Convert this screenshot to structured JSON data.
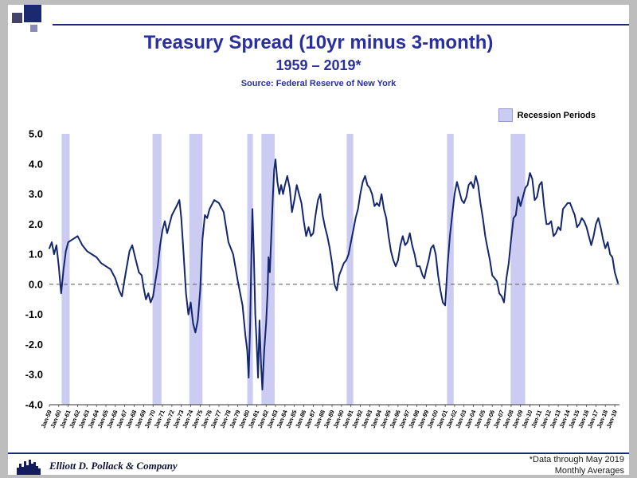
{
  "slide": {
    "title": "Treasury Spread (10yr minus 3-month)",
    "subtitle": "1959 – 2019*",
    "source": "Source: Federal Reserve of New York",
    "footer_company": "Elliott D. Pollack & Company",
    "footer_note_line1": "*Data through May 2019",
    "footer_note_line2": "Monthly Averages"
  },
  "legend": {
    "label": "Recession Periods"
  },
  "colors": {
    "title": "#2a2f9f",
    "line": "#14266e",
    "band": "#ccccf2",
    "accent_rule": "#1b2a70",
    "page_background": "#bdbdbd",
    "slide_background": "#ffffff"
  },
  "chart_data": {
    "type": "line",
    "title": "Treasury Spread (10yr minus 3-month)",
    "subtitle": "1959 – 2019*",
    "source": "Source: Federal Reserve of New York",
    "ylabel": "",
    "xlabel": "",
    "ylim": [
      -4.0,
      5.0
    ],
    "yticks": [
      "5.0",
      "4.0",
      "3.0",
      "2.0",
      "1.0",
      "0.0",
      "-1.0",
      "-2.0",
      "-3.0",
      "-4.0"
    ],
    "x_domain": [
      1959.0,
      2019.5
    ],
    "zero_line_style": "dashed",
    "legend_position": "top-right",
    "legend_entries": [
      "Recession Periods"
    ],
    "categories": [
      "Jan-59",
      "Jan-60",
      "Jan-61",
      "Jan-62",
      "Jan-63",
      "Jan-64",
      "Jan-65",
      "Jan-66",
      "Jan-67",
      "Jan-68",
      "Jan-69",
      "Jan-70",
      "Jan-71",
      "Jan-72",
      "Jan-73",
      "Jan-74",
      "Jan-75",
      "Jan-76",
      "Jan-77",
      "Jan-78",
      "Jan-79",
      "Jan-80",
      "Jan-81",
      "Jan-82",
      "Jan-83",
      "Jan-84",
      "Jan-85",
      "Jan-86",
      "Jan-87",
      "Jan-88",
      "Jan-89",
      "Jan-90",
      "Jan-91",
      "Jan-92",
      "Jan-93",
      "Jan-94",
      "Jan-95",
      "Jan-96",
      "Jan-97",
      "Jan-98",
      "Jan-99",
      "Jan-00",
      "Jan-01",
      "Jan-02",
      "Jan-03",
      "Jan-04",
      "Jan-05",
      "Jan-06",
      "Jan-07",
      "Jan-08",
      "Jan-09",
      "Jan-10",
      "Jan-11",
      "Jan-12",
      "Jan-13",
      "Jan-14",
      "Jan-15",
      "Jan-16",
      "Jan-17",
      "Jan-18",
      "Jan-19"
    ],
    "recession_bands": [
      [
        1960.3,
        1961.15
      ],
      [
        1969.95,
        1970.9
      ],
      [
        1973.85,
        1975.25
      ],
      [
        1980.0,
        1980.6
      ],
      [
        1981.5,
        1982.9
      ],
      [
        1990.55,
        1991.25
      ],
      [
        2001.2,
        2001.9
      ],
      [
        2007.95,
        2009.5
      ]
    ],
    "series": [
      {
        "name": "10yr minus 3-month Treasury spread (monthly average, %)",
        "points": [
          [
            1959.0,
            1.2
          ],
          [
            1959.25,
            1.4
          ],
          [
            1959.5,
            1.0
          ],
          [
            1959.75,
            1.3
          ],
          [
            1960.0,
            0.6
          ],
          [
            1960.25,
            -0.3
          ],
          [
            1960.5,
            0.5
          ],
          [
            1960.75,
            1.1
          ],
          [
            1961.0,
            1.4
          ],
          [
            1961.5,
            1.5
          ],
          [
            1962.0,
            1.6
          ],
          [
            1962.5,
            1.3
          ],
          [
            1963.0,
            1.1
          ],
          [
            1963.5,
            1.0
          ],
          [
            1964.0,
            0.9
          ],
          [
            1964.5,
            0.7
          ],
          [
            1965.0,
            0.6
          ],
          [
            1965.5,
            0.5
          ],
          [
            1966.0,
            0.2
          ],
          [
            1966.4,
            -0.2
          ],
          [
            1966.7,
            -0.4
          ],
          [
            1967.0,
            0.2
          ],
          [
            1967.5,
            1.1
          ],
          [
            1967.8,
            1.3
          ],
          [
            1968.1,
            0.9
          ],
          [
            1968.5,
            0.4
          ],
          [
            1968.8,
            0.3
          ],
          [
            1969.0,
            -0.1
          ],
          [
            1969.25,
            -0.5
          ],
          [
            1969.5,
            -0.3
          ],
          [
            1969.75,
            -0.6
          ],
          [
            1970.0,
            -0.4
          ],
          [
            1970.25,
            0.1
          ],
          [
            1970.5,
            0.6
          ],
          [
            1970.75,
            1.3
          ],
          [
            1971.0,
            1.8
          ],
          [
            1971.25,
            2.1
          ],
          [
            1971.5,
            1.7
          ],
          [
            1971.75,
            2.0
          ],
          [
            1972.0,
            2.3
          ],
          [
            1972.5,
            2.6
          ],
          [
            1972.8,
            2.8
          ],
          [
            1973.0,
            2.2
          ],
          [
            1973.25,
            1.0
          ],
          [
            1973.5,
            -0.3
          ],
          [
            1973.75,
            -1.0
          ],
          [
            1974.0,
            -0.6
          ],
          [
            1974.25,
            -1.3
          ],
          [
            1974.5,
            -1.6
          ],
          [
            1974.75,
            -1.2
          ],
          [
            1975.0,
            -0.2
          ],
          [
            1975.25,
            1.5
          ],
          [
            1975.5,
            2.3
          ],
          [
            1975.75,
            2.2
          ],
          [
            1976.0,
            2.5
          ],
          [
            1976.5,
            2.8
          ],
          [
            1977.0,
            2.7
          ],
          [
            1977.5,
            2.4
          ],
          [
            1978.0,
            1.4
          ],
          [
            1978.5,
            1.0
          ],
          [
            1979.0,
            0.1
          ],
          [
            1979.5,
            -0.7
          ],
          [
            1979.8,
            -1.7
          ],
          [
            1980.0,
            -2.2
          ],
          [
            1980.15,
            -3.1
          ],
          [
            1980.3,
            -1.4
          ],
          [
            1980.45,
            1.2
          ],
          [
            1980.55,
            2.5
          ],
          [
            1980.7,
            1.0
          ],
          [
            1980.85,
            -1.0
          ],
          [
            1981.0,
            -2.0
          ],
          [
            1981.15,
            -3.1
          ],
          [
            1981.3,
            -1.2
          ],
          [
            1981.45,
            -2.6
          ],
          [
            1981.6,
            -3.5
          ],
          [
            1981.8,
            -2.2
          ],
          [
            1982.0,
            -1.3
          ],
          [
            1982.15,
            -0.3
          ],
          [
            1982.25,
            0.9
          ],
          [
            1982.4,
            0.4
          ],
          [
            1982.55,
            1.6
          ],
          [
            1982.7,
            2.8
          ],
          [
            1982.85,
            3.8
          ],
          [
            1983.0,
            4.15
          ],
          [
            1983.2,
            3.4
          ],
          [
            1983.4,
            3.0
          ],
          [
            1983.6,
            3.3
          ],
          [
            1983.8,
            3.0
          ],
          [
            1984.0,
            3.3
          ],
          [
            1984.25,
            3.6
          ],
          [
            1984.5,
            3.2
          ],
          [
            1984.75,
            2.4
          ],
          [
            1985.0,
            2.8
          ],
          [
            1985.25,
            3.3
          ],
          [
            1985.5,
            3.0
          ],
          [
            1985.75,
            2.7
          ],
          [
            1986.0,
            2.1
          ],
          [
            1986.25,
            1.6
          ],
          [
            1986.5,
            1.9
          ],
          [
            1986.75,
            1.6
          ],
          [
            1987.0,
            1.7
          ],
          [
            1987.25,
            2.3
          ],
          [
            1987.5,
            2.8
          ],
          [
            1987.75,
            3.0
          ],
          [
            1988.0,
            2.3
          ],
          [
            1988.25,
            1.9
          ],
          [
            1988.5,
            1.6
          ],
          [
            1988.75,
            1.2
          ],
          [
            1989.0,
            0.7
          ],
          [
            1989.25,
            0.0
          ],
          [
            1989.5,
            -0.2
          ],
          [
            1989.75,
            0.3
          ],
          [
            1990.0,
            0.5
          ],
          [
            1990.25,
            0.7
          ],
          [
            1990.5,
            0.8
          ],
          [
            1990.75,
            1.0
          ],
          [
            1991.0,
            1.4
          ],
          [
            1991.25,
            1.8
          ],
          [
            1991.5,
            2.2
          ],
          [
            1991.75,
            2.5
          ],
          [
            1992.0,
            3.0
          ],
          [
            1992.25,
            3.4
          ],
          [
            1992.5,
            3.6
          ],
          [
            1992.75,
            3.3
          ],
          [
            1993.0,
            3.2
          ],
          [
            1993.25,
            3.0
          ],
          [
            1993.5,
            2.6
          ],
          [
            1993.75,
            2.7
          ],
          [
            1994.0,
            2.6
          ],
          [
            1994.25,
            3.0
          ],
          [
            1994.5,
            2.5
          ],
          [
            1994.75,
            2.2
          ],
          [
            1995.0,
            1.6
          ],
          [
            1995.25,
            1.1
          ],
          [
            1995.5,
            0.8
          ],
          [
            1995.75,
            0.6
          ],
          [
            1996.0,
            0.8
          ],
          [
            1996.25,
            1.3
          ],
          [
            1996.5,
            1.6
          ],
          [
            1996.75,
            1.3
          ],
          [
            1997.0,
            1.4
          ],
          [
            1997.25,
            1.7
          ],
          [
            1997.5,
            1.3
          ],
          [
            1997.75,
            1.0
          ],
          [
            1998.0,
            0.6
          ],
          [
            1998.3,
            0.6
          ],
          [
            1998.6,
            0.3
          ],
          [
            1998.8,
            0.2
          ],
          [
            1999.0,
            0.5
          ],
          [
            1999.25,
            0.8
          ],
          [
            1999.5,
            1.2
          ],
          [
            1999.75,
            1.3
          ],
          [
            2000.0,
            1.0
          ],
          [
            2000.25,
            0.3
          ],
          [
            2000.5,
            -0.2
          ],
          [
            2000.75,
            -0.6
          ],
          [
            2001.0,
            -0.7
          ],
          [
            2001.25,
            0.6
          ],
          [
            2001.5,
            1.6
          ],
          [
            2001.75,
            2.3
          ],
          [
            2002.0,
            3.0
          ],
          [
            2002.25,
            3.4
          ],
          [
            2002.5,
            3.1
          ],
          [
            2002.75,
            2.8
          ],
          [
            2003.0,
            2.7
          ],
          [
            2003.25,
            2.9
          ],
          [
            2003.5,
            3.3
          ],
          [
            2003.75,
            3.4
          ],
          [
            2004.0,
            3.2
          ],
          [
            2004.25,
            3.6
          ],
          [
            2004.5,
            3.3
          ],
          [
            2004.75,
            2.7
          ],
          [
            2005.0,
            2.2
          ],
          [
            2005.25,
            1.6
          ],
          [
            2005.5,
            1.2
          ],
          [
            2005.75,
            0.8
          ],
          [
            2006.0,
            0.3
          ],
          [
            2006.25,
            0.2
          ],
          [
            2006.5,
            0.1
          ],
          [
            2006.75,
            -0.3
          ],
          [
            2007.0,
            -0.4
          ],
          [
            2007.25,
            -0.6
          ],
          [
            2007.5,
            0.2
          ],
          [
            2007.75,
            0.7
          ],
          [
            2008.0,
            1.5
          ],
          [
            2008.25,
            2.2
          ],
          [
            2008.5,
            2.3
          ],
          [
            2008.75,
            2.9
          ],
          [
            2009.0,
            2.6
          ],
          [
            2009.25,
            2.9
          ],
          [
            2009.5,
            3.2
          ],
          [
            2009.75,
            3.3
          ],
          [
            2010.0,
            3.7
          ],
          [
            2010.25,
            3.5
          ],
          [
            2010.5,
            2.8
          ],
          [
            2010.75,
            2.9
          ],
          [
            2011.0,
            3.3
          ],
          [
            2011.25,
            3.4
          ],
          [
            2011.5,
            2.6
          ],
          [
            2011.75,
            2.0
          ],
          [
            2012.0,
            2.0
          ],
          [
            2012.25,
            2.1
          ],
          [
            2012.5,
            1.6
          ],
          [
            2012.75,
            1.7
          ],
          [
            2013.0,
            1.9
          ],
          [
            2013.25,
            1.8
          ],
          [
            2013.5,
            2.5
          ],
          [
            2013.75,
            2.6
          ],
          [
            2014.0,
            2.7
          ],
          [
            2014.25,
            2.7
          ],
          [
            2014.5,
            2.5
          ],
          [
            2014.75,
            2.3
          ],
          [
            2015.0,
            1.9
          ],
          [
            2015.25,
            2.0
          ],
          [
            2015.5,
            2.2
          ],
          [
            2015.75,
            2.1
          ],
          [
            2016.0,
            1.9
          ],
          [
            2016.25,
            1.6
          ],
          [
            2016.5,
            1.3
          ],
          [
            2016.75,
            1.6
          ],
          [
            2017.0,
            2.0
          ],
          [
            2017.25,
            2.2
          ],
          [
            2017.5,
            1.9
          ],
          [
            2017.75,
            1.5
          ],
          [
            2018.0,
            1.2
          ],
          [
            2018.25,
            1.4
          ],
          [
            2018.5,
            1.0
          ],
          [
            2018.75,
            0.9
          ],
          [
            2019.0,
            0.4
          ],
          [
            2019.33,
            0.05
          ]
        ]
      }
    ]
  }
}
